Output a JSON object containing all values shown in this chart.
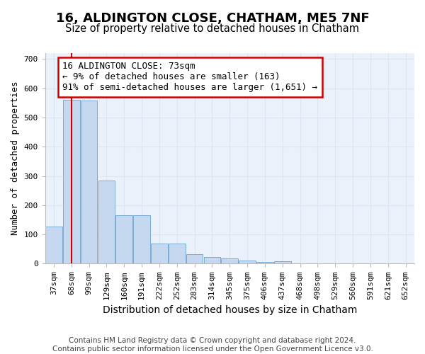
{
  "title": "16, ALDINGTON CLOSE, CHATHAM, ME5 7NF",
  "subtitle": "Size of property relative to detached houses in Chatham",
  "xlabel": "Distribution of detached houses by size in Chatham",
  "ylabel": "Number of detached properties",
  "bar_labels": [
    "37sqm",
    "68sqm",
    "99sqm",
    "129sqm",
    "160sqm",
    "191sqm",
    "222sqm",
    "252sqm",
    "283sqm",
    "314sqm",
    "345sqm",
    "375sqm",
    "406sqm",
    "437sqm",
    "468sqm",
    "498sqm",
    "529sqm",
    "560sqm",
    "591sqm",
    "621sqm",
    "652sqm"
  ],
  "bar_values": [
    127,
    560,
    558,
    285,
    165,
    165,
    68,
    68,
    33,
    22,
    18,
    10,
    5,
    8,
    2,
    0,
    0,
    0,
    0,
    0,
    0
  ],
  "bar_color": "#c5d8f0",
  "bar_edge_color": "#7aadd4",
  "annotation_text": "16 ALDINGTON CLOSE: 73sqm\n← 9% of detached houses are smaller (163)\n91% of semi-detached houses are larger (1,651) →",
  "annotation_box_color": "#ffffff",
  "annotation_border_color": "#cc0000",
  "vline_color": "#cc0000",
  "vline_x": 1.0,
  "ylim": [
    0,
    720
  ],
  "yticks": [
    0,
    100,
    200,
    300,
    400,
    500,
    600,
    700
  ],
  "grid_color": "#dce6f0",
  "plot_bg_color": "#eaf1fb",
  "fig_bg_color": "#ffffff",
  "footer_text": "Contains HM Land Registry data © Crown copyright and database right 2024.\nContains public sector information licensed under the Open Government Licence v3.0.",
  "title_fontsize": 13,
  "subtitle_fontsize": 10.5,
  "xlabel_fontsize": 10,
  "ylabel_fontsize": 9,
  "tick_fontsize": 8,
  "annotation_fontsize": 9,
  "footer_fontsize": 7.5
}
